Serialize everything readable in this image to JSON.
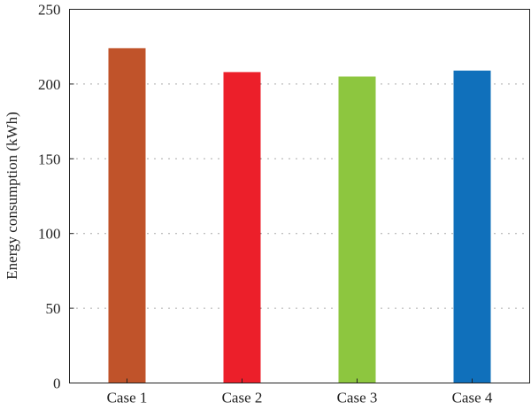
{
  "chart_data": {
    "type": "bar",
    "title": "",
    "xlabel": "",
    "ylabel": "Energy consumption (kWh)",
    "categories": [
      "Case 1",
      "Case 2",
      "Case 3",
      "Case 4"
    ],
    "values": [
      224,
      208,
      205,
      209
    ],
    "colors": [
      "#c0532a",
      "#ec1f2a",
      "#8dc63f",
      "#1070bb"
    ],
    "ylim": [
      0,
      250
    ],
    "yticks": [
      0,
      50,
      100,
      150,
      200,
      250
    ],
    "grid": "horizontal dotted",
    "legend": "none"
  }
}
